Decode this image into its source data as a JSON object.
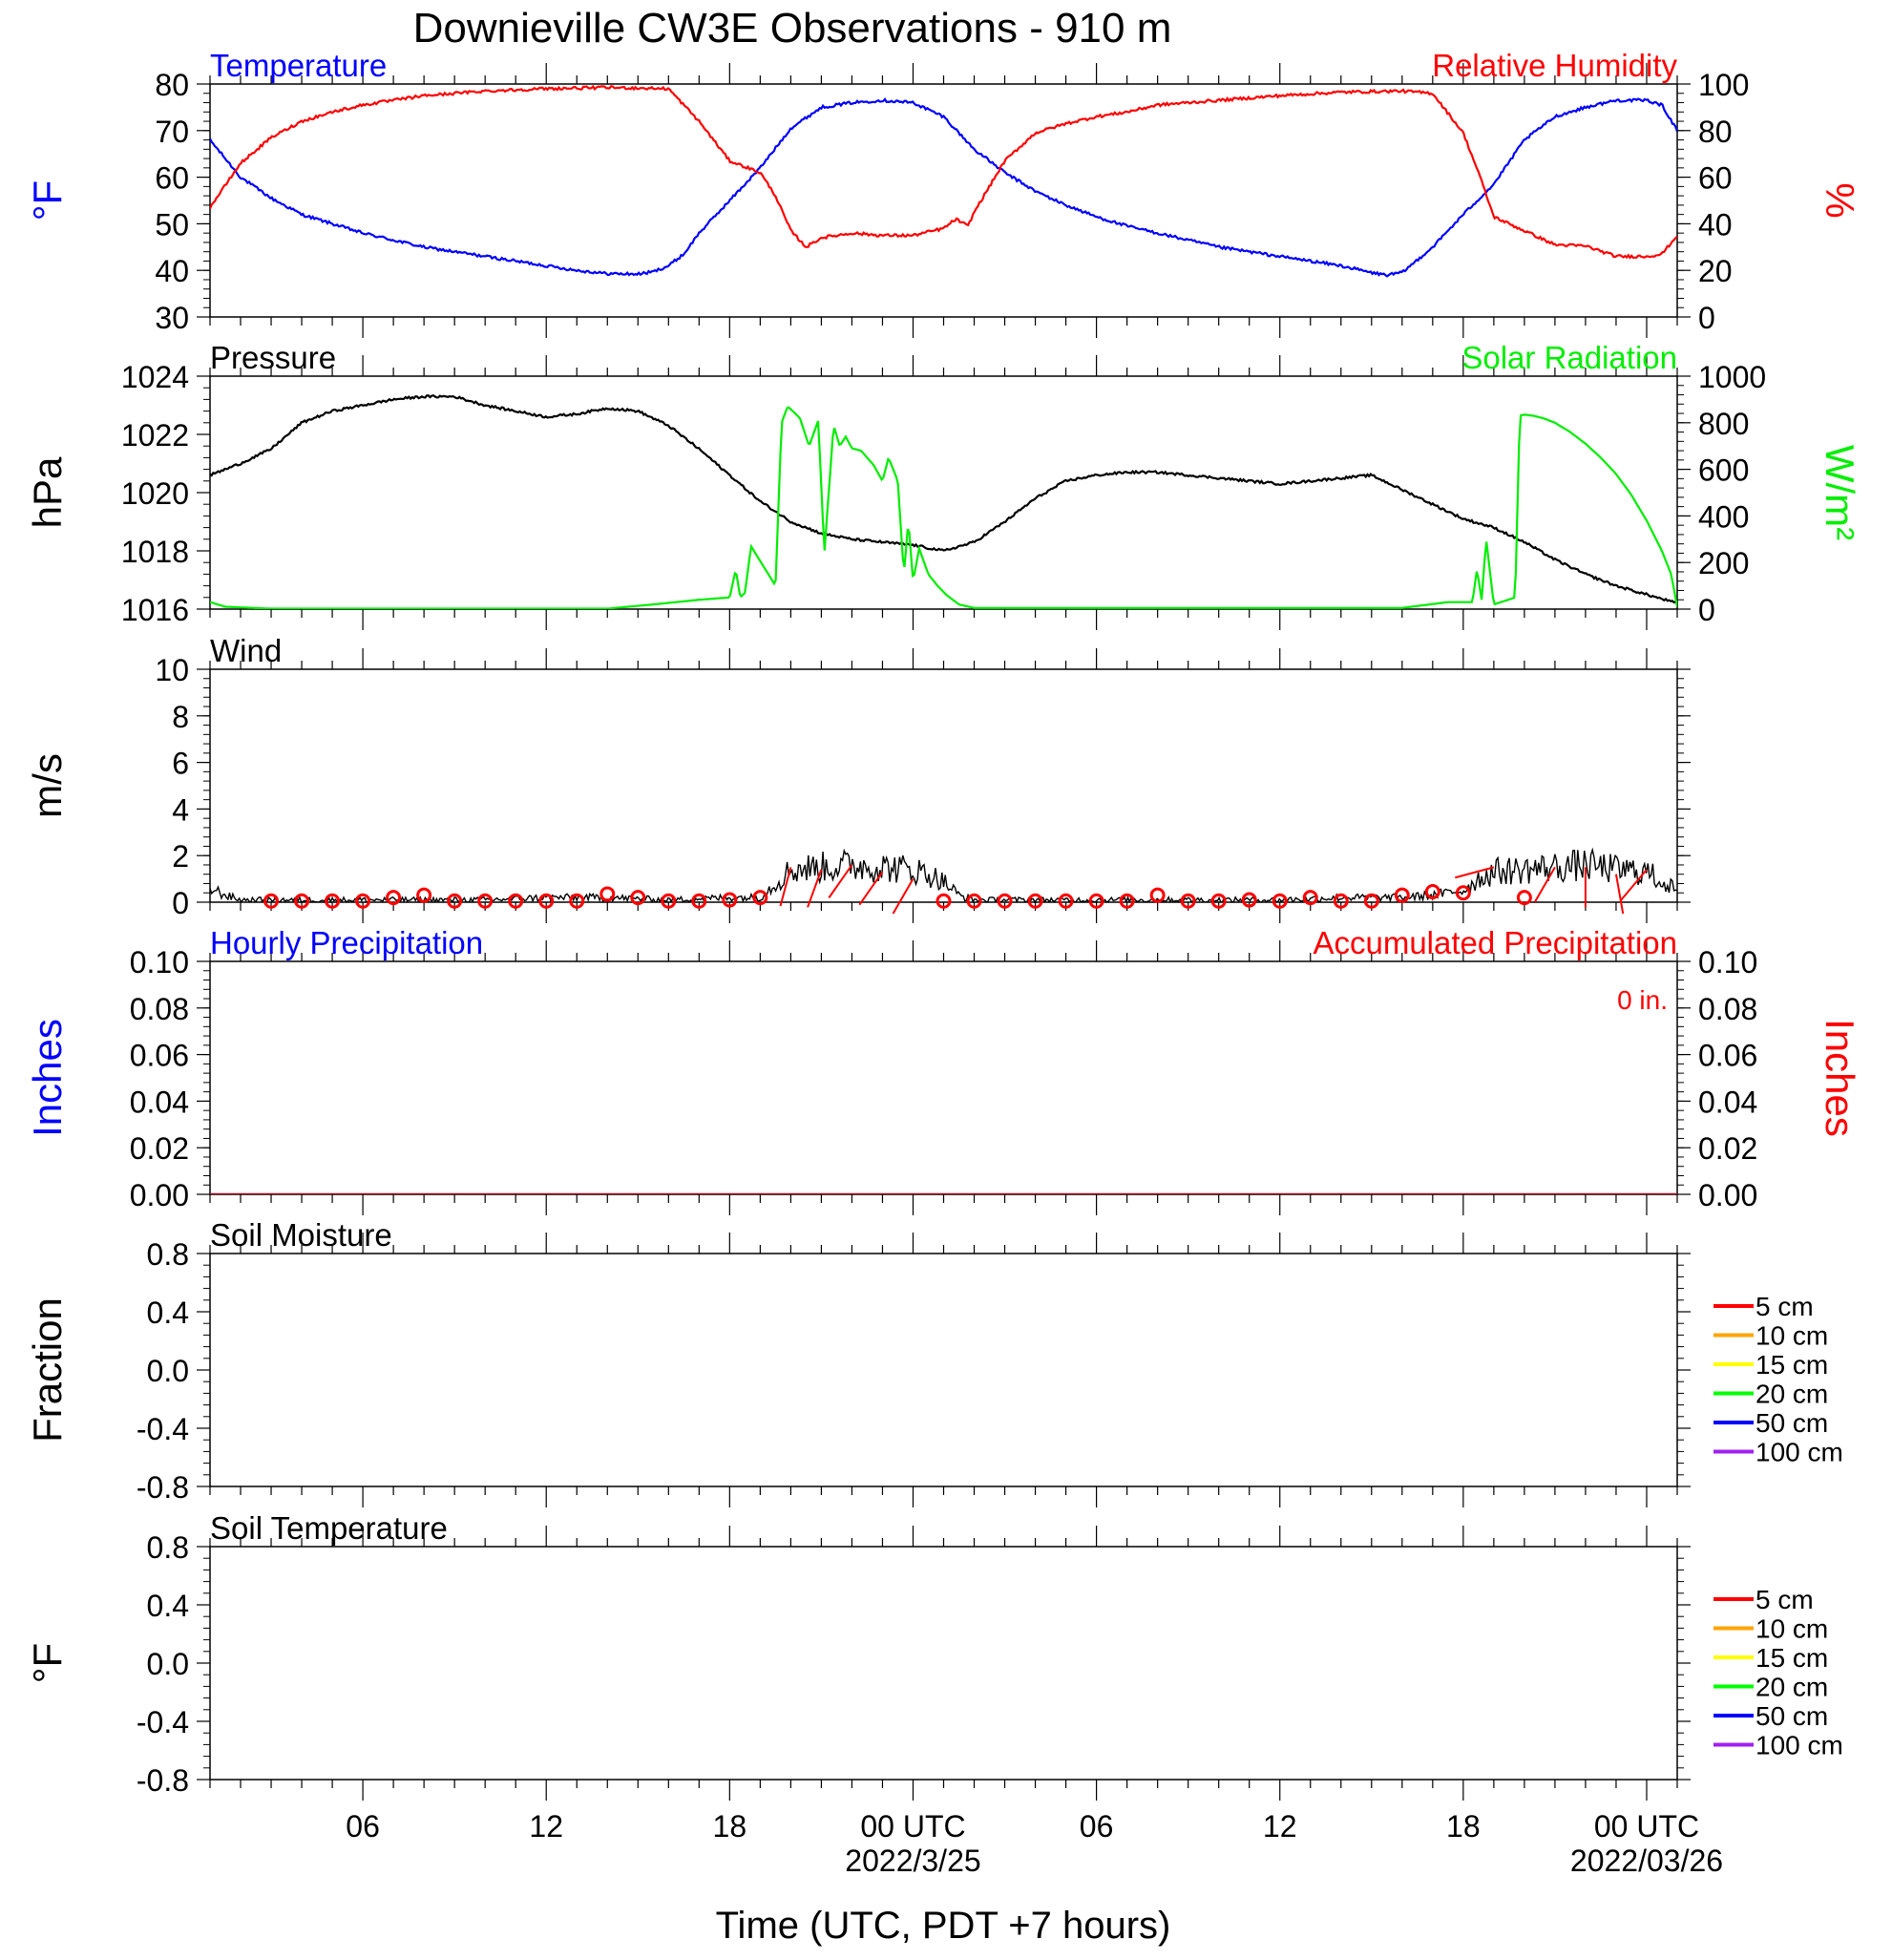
{
  "page": {
    "title": "Downieville CW3E Observations - 910 m",
    "xlabel": "Time (UTC, PDT +7 hours)",
    "x_ticks": [
      {
        "hour": 6,
        "label": "06"
      },
      {
        "hour": 12,
        "label": "12"
      },
      {
        "hour": 18,
        "label": "18"
      },
      {
        "hour": 24,
        "label": "00 UTC"
      },
      {
        "hour": 30,
        "label": "06"
      },
      {
        "hour": 36,
        "label": "12"
      },
      {
        "hour": 42,
        "label": "18"
      },
      {
        "hour": 48,
        "label": "00 UTC"
      }
    ],
    "date_labels": [
      {
        "hour": 24,
        "label": "2022/3/25"
      },
      {
        "hour": 48,
        "label": "2022/03/26"
      }
    ]
  },
  "chart_data": [
    {
      "id": "temp_rh",
      "type": "line",
      "x_range_hours": [
        1,
        49
      ],
      "left_title": "Temperature",
      "right_title": "Relative Humidity",
      "ylabel": "°F",
      "ylabel_right": "%",
      "ylim": [
        30,
        80
      ],
      "ylim_right": [
        0,
        100
      ],
      "y_ticks": [
        "80",
        "70",
        "60",
        "50",
        "40",
        "30"
      ],
      "y_ticks_right": [
        "100",
        "80",
        "60",
        "40",
        "20",
        "0"
      ],
      "colors": {
        "left": "#0000ff",
        "right": "#ff0000"
      },
      "series": [
        {
          "name": "Temperature",
          "axis": "left",
          "color": "#0000ff",
          "noise": 0.3,
          "x": [
            1,
            2,
            3,
            4,
            5,
            6,
            7,
            8,
            9,
            10,
            11,
            12,
            13,
            14,
            15,
            15.5,
            16,
            16.5,
            17,
            18,
            19,
            20,
            21,
            22,
            23,
            24,
            25,
            26,
            27,
            28,
            29,
            30,
            31,
            32,
            33,
            34,
            35,
            36,
            37,
            38,
            39,
            39.5,
            40,
            41,
            42,
            43,
            44,
            45,
            46,
            47,
            48,
            48.5,
            49
          ],
          "y": [
            68,
            60,
            55.5,
            52,
            50,
            48,
            46.5,
            45,
            44,
            43,
            42,
            41,
            40,
            39.3,
            39.2,
            39.7,
            41,
            43.5,
            48,
            55,
            62,
            70.5,
            75,
            76,
            76.5,
            76,
            73,
            66,
            61,
            57,
            54,
            51.5,
            49.5,
            48,
            46.5,
            45,
            44,
            43,
            42,
            41,
            39.5,
            39,
            39.5,
            45,
            52,
            58.5,
            68,
            73,
            75,
            76.5,
            76.5,
            75.5,
            70
          ]
        },
        {
          "name": "Relative Humidity",
          "axis": "right",
          "color": "#ff0000",
          "noise": 0.6,
          "x": [
            1,
            2,
            3,
            4,
            5,
            6,
            8,
            10,
            12,
            14,
            16,
            17,
            18,
            19,
            19.5,
            20,
            20.5,
            21,
            22,
            23,
            24,
            25,
            25.4,
            25.8,
            26,
            27,
            28,
            29,
            30,
            31,
            32,
            34,
            36,
            38,
            40,
            41,
            42,
            42.5,
            43,
            44,
            45,
            46,
            47,
            48,
            48.5,
            49
          ],
          "y": [
            47,
            66,
            77,
            84,
            88,
            91,
            95,
            97,
            98,
            98.5,
            98,
            84,
            67,
            62,
            52,
            37,
            30,
            34,
            36,
            35,
            35,
            38,
            42,
            39,
            45,
            67,
            79,
            83,
            86,
            88,
            91,
            93,
            95,
            96.5,
            97,
            96,
            79,
            62,
            43,
            37,
            31,
            30.5,
            26,
            26,
            27,
            35
          ]
        }
      ]
    },
    {
      "id": "pressure_solar",
      "type": "line",
      "x_range_hours": [
        1,
        49
      ],
      "left_title": "Pressure",
      "right_title": "Solar Radiation",
      "ylabel": "hPa",
      "ylabel_right": "W/m²",
      "ylim": [
        1016,
        1024
      ],
      "ylim_right": [
        0,
        1000
      ],
      "y_ticks": [
        "1024",
        "1022",
        "1020",
        "1018",
        "1016"
      ],
      "y_ticks_right": [
        "1000",
        "800",
        "600",
        "400",
        "200",
        "0"
      ],
      "colors": {
        "left": "#000000",
        "right": "#00ee00"
      },
      "series": [
        {
          "name": "Pressure",
          "axis": "left",
          "color": "#000000",
          "noise": 0.04,
          "x": [
            1,
            2,
            3,
            4,
            5,
            6,
            7,
            8,
            9,
            10,
            11,
            12,
            13,
            14,
            15,
            16,
            17,
            18,
            19,
            20,
            21,
            22,
            23,
            24,
            25,
            26,
            27,
            28,
            29,
            30,
            31,
            32,
            33,
            34,
            35,
            36,
            37,
            38,
            39,
            40,
            41,
            42,
            43,
            44,
            45,
            46,
            47,
            48,
            49
          ],
          "y": [
            1020.6,
            1021.0,
            1021.5,
            1022.4,
            1022.8,
            1023.0,
            1023.2,
            1023.3,
            1023.3,
            1023.0,
            1022.8,
            1022.6,
            1022.7,
            1022.9,
            1022.8,
            1022.3,
            1021.5,
            1020.6,
            1019.7,
            1019.0,
            1018.6,
            1018.4,
            1018.3,
            1018.2,
            1018.0,
            1018.3,
            1019.0,
            1019.8,
            1020.4,
            1020.6,
            1020.7,
            1020.7,
            1020.6,
            1020.5,
            1020.4,
            1020.3,
            1020.4,
            1020.5,
            1020.6,
            1020.1,
            1019.6,
            1019.1,
            1018.8,
            1018.3,
            1017.7,
            1017.2,
            1016.8,
            1016.5,
            1016.2
          ]
        },
        {
          "name": "Solar Radiation",
          "axis": "right",
          "color": "#00ee00",
          "noise": 0,
          "x": [
            1,
            1.5,
            3,
            14,
            15.5,
            17,
            18,
            18.2,
            18.35,
            18.5,
            18.7,
            19.5,
            19.7,
            19.9,
            20.3,
            20.6,
            20.9,
            21.1,
            21.4,
            21.6,
            21.8,
            22,
            22.3,
            22.7,
            23,
            23.2,
            23.5,
            23.7,
            23.85,
            24,
            24.2,
            24.5,
            24.8,
            25.1,
            25.5,
            26,
            40,
            41.5,
            42.3,
            42.45,
            42.6,
            42.75,
            43,
            43.7,
            43.85,
            44,
            44.3,
            44.6,
            45,
            45.5,
            46,
            46.5,
            47,
            47.5,
            48,
            48.5,
            48.8,
            49
          ],
          "y": [
            30,
            10,
            2,
            2,
            20,
            40,
            50,
            170,
            50,
            70,
            270,
            100,
            800,
            870,
            820,
            700,
            810,
            240,
            790,
            700,
            740,
            690,
            680,
            620,
            550,
            650,
            550,
            150,
            380,
            120,
            260,
            150,
            100,
            60,
            20,
            5,
            5,
            30,
            30,
            170,
            40,
            300,
            20,
            50,
            830,
            835,
            830,
            820,
            800,
            760,
            710,
            650,
            580,
            490,
            380,
            250,
            150,
            10
          ]
        }
      ]
    },
    {
      "id": "wind",
      "type": "line",
      "x_range_hours": [
        1,
        49
      ],
      "left_title": "Wind",
      "ylabel": "m/s",
      "ylim": [
        0,
        10
      ],
      "y_ticks": [
        "10",
        "8",
        "6",
        "4",
        "2",
        "0"
      ],
      "colors": {
        "speed": "#000000",
        "barbs": "#ff0000"
      },
      "series": [
        {
          "name": "Wind",
          "axis": "left",
          "color": "#000000",
          "noise": 0.4,
          "x": [
            1,
            1.5,
            2,
            4,
            6,
            8,
            10,
            12,
            14,
            16,
            18,
            19,
            19.5,
            20,
            21,
            22,
            23,
            24,
            24.5,
            25,
            25.5,
            26,
            28,
            30,
            32,
            34,
            36,
            38,
            40,
            41,
            42,
            42.5,
            43,
            44,
            45,
            46,
            47,
            48,
            49
          ],
          "y": [
            0.6,
            0.3,
            0.1,
            0.1,
            0.1,
            0.1,
            0.1,
            0.2,
            0.2,
            0.1,
            0.2,
            0.2,
            0.8,
            1.4,
            1.5,
            1.6,
            1.5,
            1.4,
            1.2,
            0.9,
            0.3,
            0.1,
            0.1,
            0.1,
            0.1,
            0.1,
            0.1,
            0.2,
            0.2,
            0.3,
            0.5,
            1.0,
            1.3,
            1.4,
            1.5,
            1.6,
            1.4,
            1.3,
            0.5
          ]
        }
      ],
      "barbs": [
        {
          "x": 3,
          "speed": 0.05,
          "dir": 180
        },
        {
          "x": 4,
          "speed": 0.05,
          "dir": 180
        },
        {
          "x": 5,
          "speed": 0.05,
          "dir": 180
        },
        {
          "x": 6,
          "speed": 0.05,
          "dir": 180
        },
        {
          "x": 7,
          "speed": 0.2,
          "dir": 180
        },
        {
          "x": 8,
          "speed": 0.3,
          "dir": 180
        },
        {
          "x": 9,
          "speed": 0.05,
          "dir": 180
        },
        {
          "x": 10,
          "speed": 0.05,
          "dir": 180
        },
        {
          "x": 11,
          "speed": 0.05,
          "dir": 180
        },
        {
          "x": 12,
          "speed": 0.05,
          "dir": 180
        },
        {
          "x": 13,
          "speed": 0.05,
          "dir": 180
        },
        {
          "x": 14,
          "speed": 0.35,
          "dir": 180
        },
        {
          "x": 15,
          "speed": 0.2,
          "dir": 180
        },
        {
          "x": 16,
          "speed": 0.05,
          "dir": 180
        },
        {
          "x": 17,
          "speed": 0.05,
          "dir": 180
        },
        {
          "x": 18,
          "speed": 0.1,
          "dir": 180
        },
        {
          "x": 19,
          "speed": 0.2,
          "dir": 180
        },
        {
          "x": 20,
          "speed": 1.5,
          "dir": 195
        },
        {
          "x": 21,
          "speed": 1.4,
          "dir": 200
        },
        {
          "x": 22,
          "speed": 1.6,
          "dir": 215
        },
        {
          "x": 23,
          "speed": 1.3,
          "dir": 215
        },
        {
          "x": 24,
          "speed": 1.0,
          "dir": 210
        },
        {
          "x": 25,
          "speed": 0.05,
          "dir": 180
        },
        {
          "x": 26,
          "speed": 0.05,
          "dir": 180
        },
        {
          "x": 27,
          "speed": 0.05,
          "dir": 180
        },
        {
          "x": 28,
          "speed": 0.05,
          "dir": 180
        },
        {
          "x": 29,
          "speed": 0.05,
          "dir": 180
        },
        {
          "x": 30,
          "speed": 0.05,
          "dir": 180
        },
        {
          "x": 31,
          "speed": 0.05,
          "dir": 180
        },
        {
          "x": 32,
          "speed": 0.3,
          "dir": 180
        },
        {
          "x": 33,
          "speed": 0.05,
          "dir": 180
        },
        {
          "x": 34,
          "speed": 0.05,
          "dir": 180
        },
        {
          "x": 35,
          "speed": 0.1,
          "dir": 180
        },
        {
          "x": 36,
          "speed": 0.05,
          "dir": 180
        },
        {
          "x": 37,
          "speed": 0.2,
          "dir": 180
        },
        {
          "x": 38,
          "speed": 0.05,
          "dir": 180
        },
        {
          "x": 39,
          "speed": 0.05,
          "dir": 180
        },
        {
          "x": 40,
          "speed": 0.3,
          "dir": 180
        },
        {
          "x": 41,
          "speed": 0.45,
          "dir": 180
        },
        {
          "x": 42,
          "speed": 0.4,
          "dir": 180
        },
        {
          "x": 43,
          "speed": 1.5,
          "dir": 255
        },
        {
          "x": 44,
          "speed": 0.2,
          "dir": 180
        },
        {
          "x": 45,
          "speed": 1.5,
          "dir": 210
        },
        {
          "x": 46,
          "speed": 1.5,
          "dir": 180
        },
        {
          "x": 47,
          "speed": 1.2,
          "dir": 170
        },
        {
          "x": 48,
          "speed": 1.4,
          "dir": 220
        }
      ]
    },
    {
      "id": "precip",
      "type": "line",
      "x_range_hours": [
        1,
        49
      ],
      "left_title": "Hourly Precipitation",
      "right_title": "Accumulated Precipitation",
      "annotation": "0 in.",
      "ylabel": "Inches",
      "ylabel_right": "Inches",
      "ylim": [
        0,
        0.1
      ],
      "ylim_right": [
        0,
        0.1
      ],
      "y_ticks": [
        "0.10",
        "0.08",
        "0.06",
        "0.04",
        "0.02",
        "0.00"
      ],
      "y_ticks_right": [
        "0.10",
        "0.08",
        "0.06",
        "0.04",
        "0.02",
        "0.00"
      ],
      "colors": {
        "left": "#0000ff",
        "right": "#ff0000"
      },
      "series": [
        {
          "name": "Hourly Precipitation",
          "axis": "left",
          "color": "#0000ff",
          "noise": 0,
          "x": [
            1,
            49
          ],
          "y": [
            0,
            0
          ]
        },
        {
          "name": "Accumulated Precipitation",
          "axis": "right",
          "color": "#cc0000",
          "noise": 0,
          "x": [
            1,
            49
          ],
          "y": [
            0,
            0
          ]
        }
      ]
    },
    {
      "id": "soil_moisture",
      "type": "line",
      "x_range_hours": [
        1,
        49
      ],
      "left_title": "Soil Moisture",
      "ylabel": "Fraction",
      "ylim": [
        -1,
        1
      ],
      "y_ticks": [
        "0.8",
        "0.4",
        "0.0",
        "-0.4",
        "-0.8"
      ],
      "legend": [
        {
          "label": "5 cm",
          "color": "#ff0000"
        },
        {
          "label": "10 cm",
          "color": "#ffa500"
        },
        {
          "label": "15 cm",
          "color": "#ffff00"
        },
        {
          "label": "20 cm",
          "color": "#00ff00"
        },
        {
          "label": "50 cm",
          "color": "#0000ff"
        },
        {
          "label": "100 cm",
          "color": "#a020f0"
        }
      ],
      "series": []
    },
    {
      "id": "soil_temperature",
      "type": "line",
      "x_range_hours": [
        1,
        49
      ],
      "left_title": "Soil Temperature",
      "ylabel": "°F",
      "ylim": [
        -1,
        1
      ],
      "y_ticks": [
        "0.8",
        "0.4",
        "0.0",
        "-0.4",
        "-0.8"
      ],
      "legend": [
        {
          "label": "5 cm",
          "color": "#ff0000"
        },
        {
          "label": "10 cm",
          "color": "#ffa500"
        },
        {
          "label": "15 cm",
          "color": "#ffff00"
        },
        {
          "label": "20 cm",
          "color": "#00ff00"
        },
        {
          "label": "50 cm",
          "color": "#0000ff"
        },
        {
          "label": "100 cm",
          "color": "#a020f0"
        }
      ],
      "series": []
    }
  ]
}
